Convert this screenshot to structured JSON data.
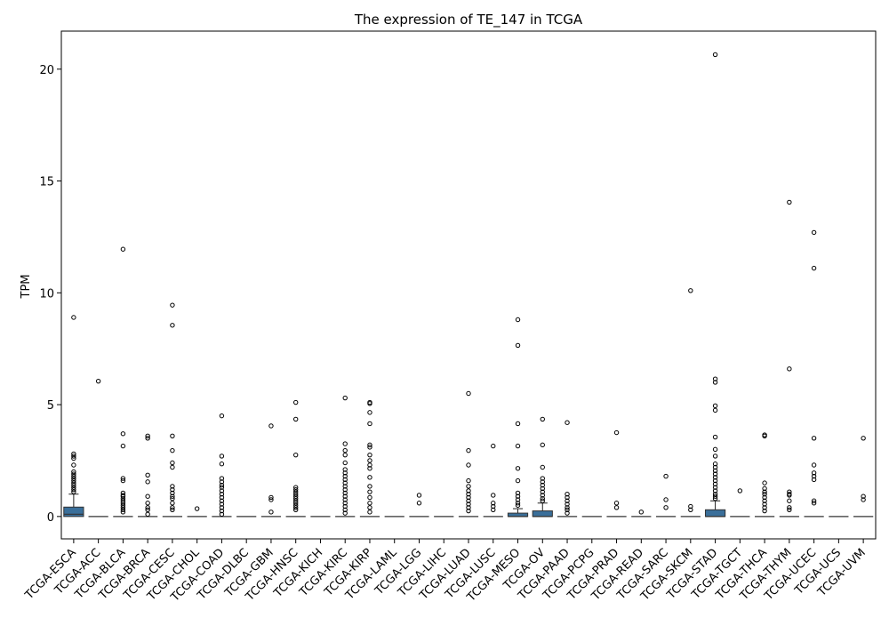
{
  "chart_data": {
    "type": "box",
    "title": "The expression of TE_147 in TCGA",
    "xlabel": "",
    "ylabel": "TPM",
    "ylim": [
      -1.0,
      21.7
    ],
    "yticks": [
      0,
      5,
      10,
      15,
      20
    ],
    "grid": false,
    "box_color": "#3a6f9a",
    "categories": [
      "TCGA-ESCA",
      "TCGA-ACC",
      "TCGA-BLCA",
      "TCGA-BRCA",
      "TCGA-CESC",
      "TCGA-CHOL",
      "TCGA-COAD",
      "TCGA-DLBC",
      "TCGA-GBM",
      "TCGA-HNSC",
      "TCGA-KICH",
      "TCGA-KIRC",
      "TCGA-KIRP",
      "TCGA-LAML",
      "TCGA-LGG",
      "TCGA-LIHC",
      "TCGA-LUAD",
      "TCGA-LUSC",
      "TCGA-MESO",
      "TCGA-OV",
      "TCGA-PAAD",
      "TCGA-PCPG",
      "TCGA-PRAD",
      "TCGA-READ",
      "TCGA-SARC",
      "TCGA-SKCM",
      "TCGA-STAD",
      "TCGA-TGCT",
      "TCGA-THCA",
      "TCGA-THYM",
      "TCGA-UCEC",
      "TCGA-UCS",
      "TCGA-UVM"
    ],
    "boxes": [
      {
        "q1": 0.0,
        "median": 0.1,
        "q3": 0.42,
        "whisker_low": 0.0,
        "whisker_high": 1.0,
        "outliers": [
          8.9,
          2.8,
          2.7,
          2.6,
          2.3,
          2.0,
          1.9,
          1.8,
          1.7,
          1.6,
          1.5,
          1.4,
          1.3,
          1.2,
          1.1
        ]
      },
      {
        "q1": 0.0,
        "median": 0.0,
        "q3": 0.0,
        "whisker_low": 0.0,
        "whisker_high": 0.0,
        "outliers": [
          6.05
        ]
      },
      {
        "q1": 0.0,
        "median": 0.0,
        "q3": 0.0,
        "whisker_low": 0.0,
        "whisker_high": 0.0,
        "outliers": [
          11.95,
          3.7,
          3.15,
          1.7,
          1.6,
          1.05,
          0.95,
          0.9,
          0.8,
          0.7,
          0.6,
          0.5,
          0.4,
          0.3,
          0.2
        ]
      },
      {
        "q1": 0.0,
        "median": 0.0,
        "q3": 0.0,
        "whisker_low": 0.0,
        "whisker_high": 0.0,
        "outliers": [
          3.6,
          3.5,
          1.85,
          1.55,
          0.9,
          0.6,
          0.4,
          0.3,
          0.1
        ]
      },
      {
        "q1": 0.0,
        "median": 0.0,
        "q3": 0.0,
        "whisker_low": 0.0,
        "whisker_high": 0.0,
        "outliers": [
          9.45,
          8.55,
          3.6,
          2.95,
          2.4,
          2.2,
          1.35,
          1.2,
          1.05,
          0.9,
          0.8,
          0.6,
          0.4,
          0.3
        ]
      },
      {
        "q1": 0.0,
        "median": 0.0,
        "q3": 0.0,
        "whisker_low": 0.0,
        "whisker_high": 0.0,
        "outliers": [
          0.35
        ]
      },
      {
        "q1": 0.0,
        "median": 0.0,
        "q3": 0.0,
        "whisker_low": 0.0,
        "whisker_high": 0.0,
        "outliers": [
          4.5,
          2.7,
          2.35,
          1.7,
          1.55,
          1.4,
          1.3,
          1.15,
          1.0,
          0.85,
          0.7,
          0.55,
          0.4,
          0.25,
          0.1
        ]
      },
      {
        "q1": 0.0,
        "median": 0.0,
        "q3": 0.0,
        "whisker_low": 0.0,
        "whisker_high": 0.0,
        "outliers": []
      },
      {
        "q1": 0.0,
        "median": 0.0,
        "q3": 0.0,
        "whisker_low": 0.0,
        "whisker_high": 0.0,
        "outliers": [
          4.05,
          0.85,
          0.75,
          0.2
        ]
      },
      {
        "q1": 0.0,
        "median": 0.0,
        "q3": 0.0,
        "whisker_low": 0.0,
        "whisker_high": 0.0,
        "outliers": [
          5.1,
          4.35,
          2.75,
          1.3,
          1.2,
          1.1,
          1.0,
          0.9,
          0.8,
          0.7,
          0.6,
          0.5,
          0.4,
          0.3
        ]
      },
      {
        "q1": 0.0,
        "median": 0.0,
        "q3": 0.0,
        "whisker_low": 0.0,
        "whisker_high": 0.0,
        "outliers": []
      },
      {
        "q1": 0.0,
        "median": 0.0,
        "q3": 0.0,
        "whisker_low": 0.0,
        "whisker_high": 0.0,
        "outliers": [
          5.3,
          3.25,
          2.95,
          2.75,
          2.4,
          2.1,
          1.95,
          1.8,
          1.65,
          1.5,
          1.35,
          1.2,
          1.05,
          0.9,
          0.75,
          0.6,
          0.45,
          0.3,
          0.15
        ]
      },
      {
        "q1": 0.0,
        "median": 0.0,
        "q3": 0.0,
        "whisker_low": 0.0,
        "whisker_high": 0.0,
        "outliers": [
          5.1,
          5.05,
          4.65,
          4.15,
          3.2,
          3.1,
          2.75,
          2.5,
          2.3,
          2.15,
          1.75,
          1.35,
          1.1,
          0.85,
          0.6,
          0.4,
          0.2
        ]
      },
      {
        "q1": 0.0,
        "median": 0.0,
        "q3": 0.0,
        "whisker_low": 0.0,
        "whisker_high": 0.0,
        "outliers": []
      },
      {
        "q1": 0.0,
        "median": 0.0,
        "q3": 0.0,
        "whisker_low": 0.0,
        "whisker_high": 0.0,
        "outliers": [
          0.95,
          0.6
        ]
      },
      {
        "q1": 0.0,
        "median": 0.0,
        "q3": 0.0,
        "whisker_low": 0.0,
        "whisker_high": 0.0,
        "outliers": []
      },
      {
        "q1": 0.0,
        "median": 0.0,
        "q3": 0.0,
        "whisker_low": 0.0,
        "whisker_high": 0.0,
        "outliers": [
          5.5,
          2.95,
          2.3,
          1.6,
          1.35,
          1.15,
          1.0,
          0.85,
          0.7,
          0.55,
          0.4,
          0.25
        ]
      },
      {
        "q1": 0.0,
        "median": 0.0,
        "q3": 0.0,
        "whisker_low": 0.0,
        "whisker_high": 0.0,
        "outliers": [
          3.15,
          0.95,
          0.6,
          0.45,
          0.3
        ]
      },
      {
        "q1": 0.0,
        "median": 0.0,
        "q3": 0.15,
        "whisker_low": 0.0,
        "whisker_high": 0.35,
        "outliers": [
          8.8,
          7.65,
          4.15,
          3.15,
          2.15,
          1.6,
          1.05,
          0.9,
          0.75,
          0.6,
          0.5
        ]
      },
      {
        "q1": 0.0,
        "median": 0.0,
        "q3": 0.25,
        "whisker_low": 0.0,
        "whisker_high": 0.6,
        "outliers": [
          4.35,
          3.2,
          2.2,
          1.7,
          1.55,
          1.4,
          1.25,
          1.1,
          0.95,
          0.8,
          0.7
        ]
      },
      {
        "q1": 0.0,
        "median": 0.0,
        "q3": 0.0,
        "whisker_low": 0.0,
        "whisker_high": 0.0,
        "outliers": [
          4.2,
          1.0,
          0.85,
          0.7,
          0.55,
          0.4,
          0.3,
          0.15
        ]
      },
      {
        "q1": 0.0,
        "median": 0.0,
        "q3": 0.0,
        "whisker_low": 0.0,
        "whisker_high": 0.0,
        "outliers": []
      },
      {
        "q1": 0.0,
        "median": 0.0,
        "q3": 0.0,
        "whisker_low": 0.0,
        "whisker_high": 0.0,
        "outliers": [
          3.75,
          0.6,
          0.4
        ]
      },
      {
        "q1": 0.0,
        "median": 0.0,
        "q3": 0.0,
        "whisker_low": 0.0,
        "whisker_high": 0.0,
        "outliers": [
          0.2
        ]
      },
      {
        "q1": 0.0,
        "median": 0.0,
        "q3": 0.0,
        "whisker_low": 0.0,
        "whisker_high": 0.0,
        "outliers": [
          1.8,
          0.75,
          0.4
        ]
      },
      {
        "q1": 0.0,
        "median": 0.0,
        "q3": 0.0,
        "whisker_low": 0.0,
        "whisker_high": 0.0,
        "outliers": [
          10.1,
          0.45,
          0.3
        ]
      },
      {
        "q1": 0.0,
        "median": 0.0,
        "q3": 0.3,
        "whisker_low": 0.0,
        "whisker_high": 0.7,
        "outliers": [
          20.65,
          6.15,
          6.0,
          4.95,
          4.75,
          3.55,
          3.0,
          2.7,
          2.35,
          2.2,
          2.05,
          1.9,
          1.75,
          1.6,
          1.45,
          1.3,
          1.15,
          1.0,
          0.9,
          0.8
        ]
      },
      {
        "q1": 0.0,
        "median": 0.0,
        "q3": 0.0,
        "whisker_low": 0.0,
        "whisker_high": 0.0,
        "outliers": [
          1.15
        ]
      },
      {
        "q1": 0.0,
        "median": 0.0,
        "q3": 0.0,
        "whisker_low": 0.0,
        "whisker_high": 0.0,
        "outliers": [
          3.65,
          3.6,
          1.5,
          1.25,
          1.1,
          1.0,
          0.85,
          0.7,
          0.55,
          0.4,
          0.25
        ]
      },
      {
        "q1": 0.0,
        "median": 0.0,
        "q3": 0.0,
        "whisker_low": 0.0,
        "whisker_high": 0.0,
        "outliers": [
          14.05,
          6.6,
          1.1,
          1.0,
          0.95,
          0.7,
          0.4,
          0.3
        ]
      },
      {
        "q1": 0.0,
        "median": 0.0,
        "q3": 0.0,
        "whisker_low": 0.0,
        "whisker_high": 0.0,
        "outliers": [
          12.7,
          11.1,
          3.5,
          2.3,
          1.95,
          1.8,
          1.65,
          0.7,
          0.6
        ]
      },
      {
        "q1": 0.0,
        "median": 0.0,
        "q3": 0.0,
        "whisker_low": 0.0,
        "whisker_high": 0.0,
        "outliers": []
      },
      {
        "q1": 0.0,
        "median": 0.0,
        "q3": 0.0,
        "whisker_low": 0.0,
        "whisker_high": 0.0,
        "outliers": [
          3.5,
          0.9,
          0.75
        ]
      }
    ]
  }
}
